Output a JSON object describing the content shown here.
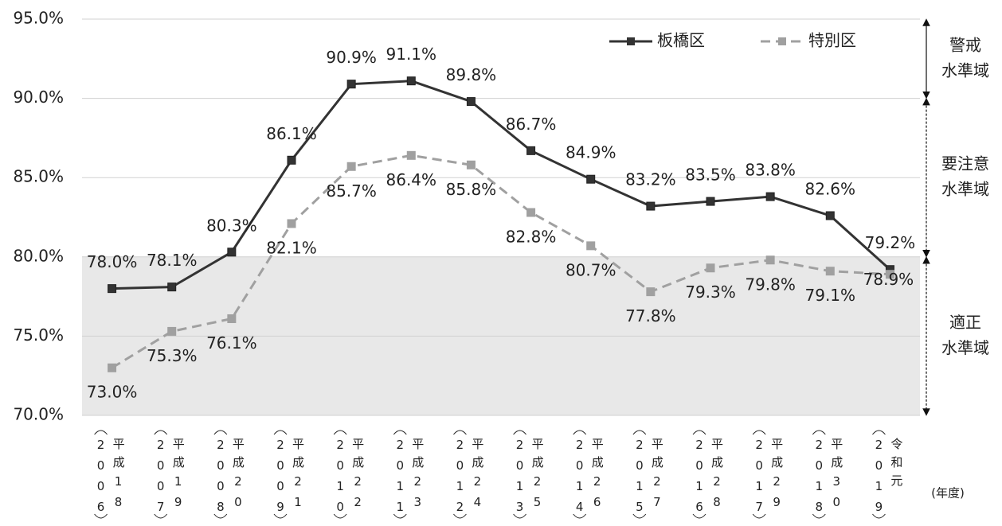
{
  "chart_data": {
    "type": "line",
    "categories": [
      "平成18",
      "平成19",
      "平成20",
      "平成21",
      "平成22",
      "平成23",
      "平成24",
      "平成25",
      "平成26",
      "平成27",
      "平成28",
      "平成29",
      "平成30",
      "令和元"
    ],
    "years": [
      "2006",
      "2007",
      "2008",
      "2009",
      "2010",
      "2011",
      "2012",
      "2013",
      "2014",
      "2015",
      "2016",
      "2017",
      "2018",
      "2019"
    ],
    "x_unit": "(年度)",
    "series": [
      {
        "name": "板橋区",
        "color": "#333333",
        "dash": false,
        "values": [
          78.0,
          78.1,
          80.3,
          86.1,
          90.9,
          91.1,
          89.8,
          86.7,
          84.9,
          83.2,
          83.5,
          83.8,
          82.6,
          79.2
        ],
        "value_labels": [
          "78.0%",
          "78.1%",
          "80.3%",
          "86.1%",
          "90.9%",
          "91.1%",
          "89.8%",
          "86.7%",
          "84.9%",
          "83.2%",
          "83.5%",
          "83.8%",
          "82.6%",
          "79.2%"
        ]
      },
      {
        "name": "特別区",
        "color": "#a0a0a0",
        "dash": true,
        "values": [
          73.0,
          75.3,
          76.1,
          82.1,
          85.7,
          86.4,
          85.8,
          82.8,
          80.7,
          77.8,
          79.3,
          79.8,
          79.1,
          78.9
        ],
        "value_labels": [
          "73.0%",
          "75.3%",
          "76.1%",
          "82.1%",
          "85.7%",
          "86.4%",
          "85.8%",
          "82.8%",
          "80.7%",
          "77.8%",
          "79.3%",
          "79.8%",
          "79.1%",
          "78.9%"
        ]
      }
    ],
    "ylim": [
      70,
      95
    ],
    "yticks": [
      {
        "value": 70,
        "label": "70.0%"
      },
      {
        "value": 75,
        "label": "75.0%"
      },
      {
        "value": 80,
        "label": "80.0%"
      },
      {
        "value": 85,
        "label": "85.0%"
      },
      {
        "value": 90,
        "label": "90.0%"
      },
      {
        "value": 95,
        "label": "95.0%"
      }
    ],
    "grid": true,
    "legend": "top-right",
    "zones": [
      {
        "line1": "警戒",
        "line2": "水準域",
        "from": 90,
        "to": 95,
        "shaded": false
      },
      {
        "line1": "要注意",
        "line2": "水準域",
        "from": 80,
        "to": 90,
        "shaded": false
      },
      {
        "line1": "適正",
        "line2": "水準域",
        "from": 70,
        "to": 80,
        "shaded": true
      }
    ]
  }
}
